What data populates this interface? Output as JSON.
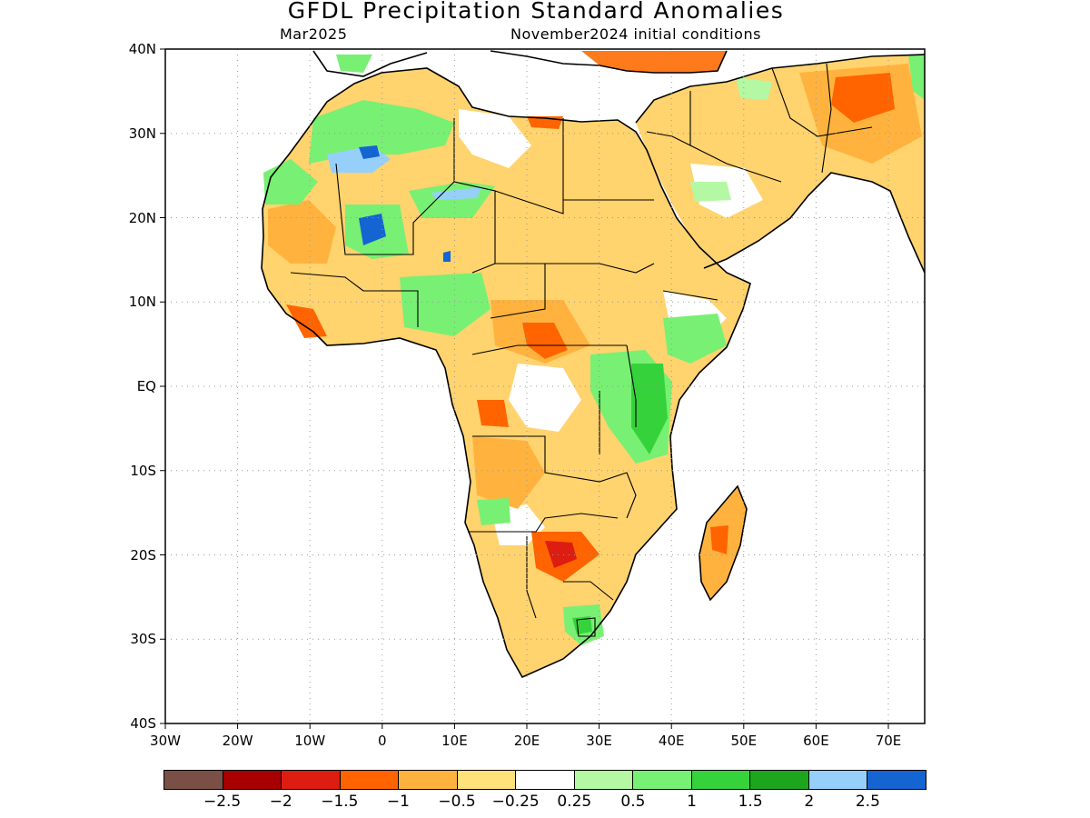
{
  "title": "GFDL Precipitation Standard Anomalies",
  "subtitle_left": "Mar2025",
  "subtitle_right": "November2024 initial conditions",
  "map": {
    "lat_labels": [
      "40N",
      "30N",
      "20N",
      "10N",
      "EQ",
      "10S",
      "20S",
      "30S",
      "40S"
    ],
    "lon_labels": [
      "30W",
      "20W",
      "10W",
      "0",
      "10E",
      "20E",
      "30E",
      "40E",
      "50E",
      "60E",
      "70E"
    ],
    "extent": {
      "lon_min": -30,
      "lon_max": 75,
      "lat_min": -40,
      "lat_max": 40
    },
    "grid": "dotted"
  },
  "colorbar": {
    "colors": [
      "#7a5046",
      "#a80000",
      "#dd1c12",
      "#ff6400",
      "#ffb33e",
      "#ffe27a",
      "#ffffff",
      "#b4f8a4",
      "#78f073",
      "#36d23c",
      "#1ea51e",
      "#96d0fa",
      "#1464d2"
    ],
    "labels": [
      "−2.5",
      "−2",
      "−1.5",
      "−1",
      "−0.5",
      "−0.25",
      "0.25",
      "0.5",
      "1",
      "1.5",
      "2",
      "2.5"
    ]
  }
}
